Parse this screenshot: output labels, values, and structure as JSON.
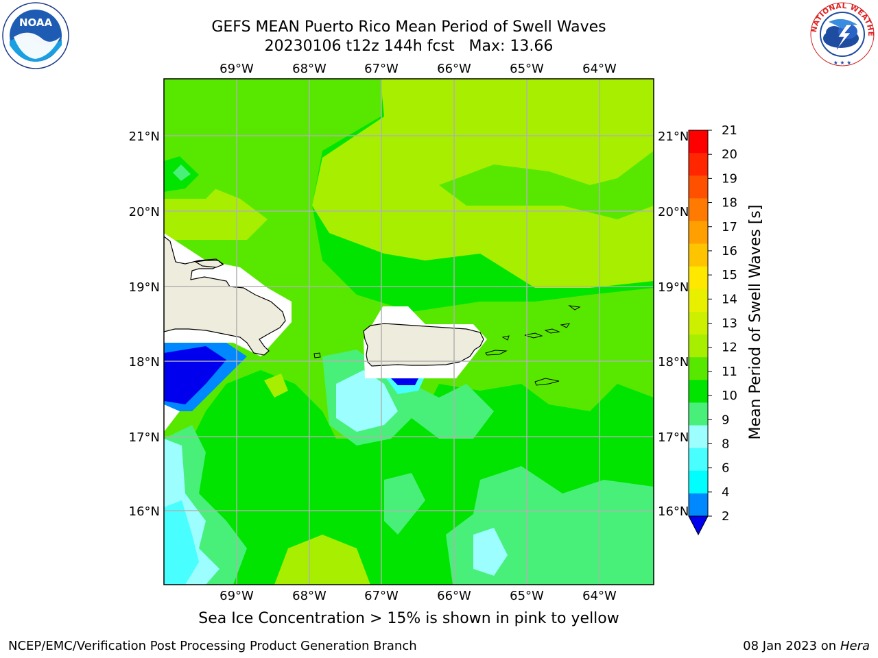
{
  "header": {
    "title": "GEFS MEAN Puerto Rico Mean Period of Swell Waves",
    "subtitle": "20230106 t12z 144h fcst   Max: 13.66"
  },
  "map": {
    "lon_labels": [
      "69°W",
      "68°W",
      "67°W",
      "66°W",
      "65°W",
      "64°W"
    ],
    "lat_labels": [
      "21°N",
      "20°N",
      "19°N",
      "18°N",
      "17°N",
      "16°N"
    ],
    "land_color": "#eeecdc",
    "grid_color": "#b0b0b0"
  },
  "colorbar": {
    "label": "Mean Period of Swell Waves [s]",
    "ticks": [
      "21",
      "20",
      "19",
      "18",
      "17",
      "16",
      "15",
      "14",
      "13",
      "12",
      "11",
      "10",
      "9",
      "8",
      "6",
      "4",
      "2"
    ],
    "colors": [
      "#ff0000",
      "#ff2600",
      "#ff5000",
      "#ff7a00",
      "#ffa000",
      "#ffc400",
      "#ffe800",
      "#e8f000",
      "#ccf000",
      "#a8ee00",
      "#58e800",
      "#00e400",
      "#48f07a",
      "#9cfefe",
      "#48fefe",
      "#00fefe",
      "#0088ff",
      "#0000ee"
    ]
  },
  "footer": {
    "note": "Sea Ice Concentration > 15% is shown in pink to yellow",
    "credit_left": "NCEP/EMC/Verification Post Processing Product Generation Branch",
    "credit_date": "08 Jan 2023 on",
    "credit_host": "Hera"
  },
  "logos": {
    "noaa": "NOAA",
    "nws_ring": "NATIONAL WEATHER SERVICE"
  }
}
